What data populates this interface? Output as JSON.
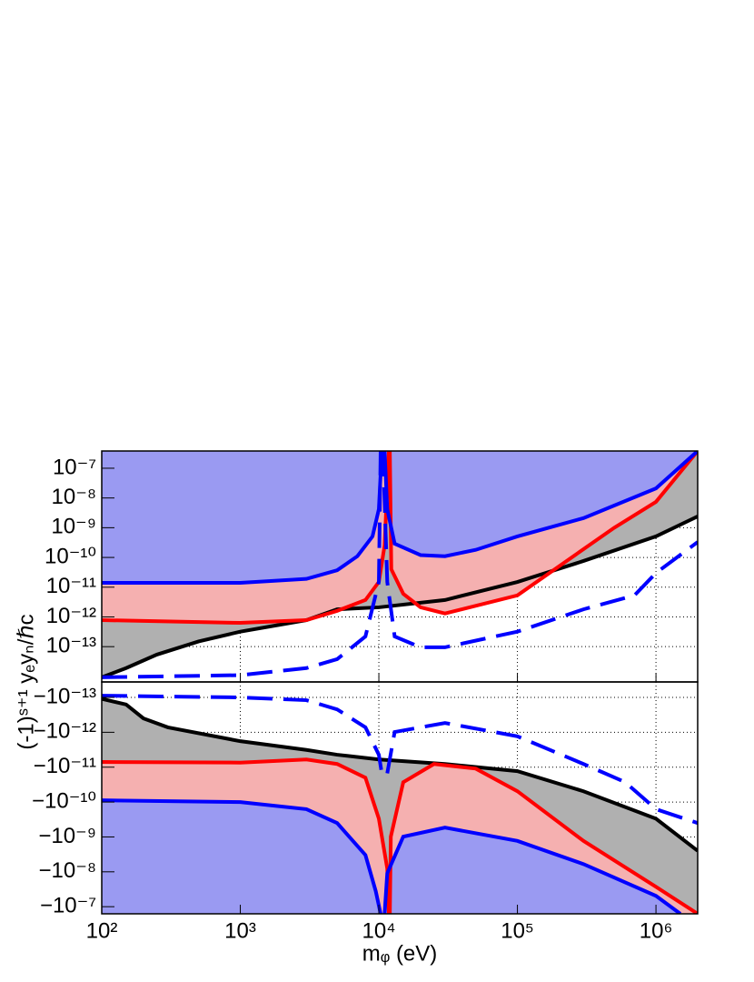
{
  "chart_data": [
    {
      "type": "line",
      "log_x": true,
      "log_y": true,
      "grid": true,
      "fill_to": "top",
      "xlim": [
        100,
        2000000
      ],
      "xticks": [
        100,
        1000,
        10000,
        100000,
        1000000
      ],
      "ylim": [
        6.5e-15,
        3.8e-07
      ],
      "yticks": [
        {
          "value": 1e-13,
          "label": "10⁻¹³"
        },
        {
          "value": 1e-12,
          "label": "10⁻¹²"
        },
        {
          "value": 1e-11,
          "label": "10⁻¹¹"
        },
        {
          "value": 1e-10,
          "label": "10⁻¹⁰"
        },
        {
          "value": 1e-09,
          "label": "10⁻⁹"
        },
        {
          "value": 1e-08,
          "label": "10⁻⁸"
        },
        {
          "value": 1e-07,
          "label": "10⁻⁷"
        }
      ],
      "series": [
        {
          "color": "#000000",
          "fill": "#b0b0b0",
          "x": [
            100,
            150,
            250,
            500,
            1000,
            3000,
            5000,
            10000,
            30000,
            100000,
            300000,
            1000000,
            2000000
          ],
          "values": [
            9.3e-15,
            1.9e-14,
            5.4e-14,
            1.5e-13,
            3.2e-13,
            7.8e-13,
            1.8e-12,
            2.1e-12,
            3.7e-12,
            1.5e-11,
            7.6e-11,
            5.1e-10,
            2.4e-09
          ]
        },
        {
          "color": "#ff0000",
          "fill": "#f5b0b0",
          "x": [
            100,
            1000,
            3000,
            5000,
            8000,
            10000,
            11000,
            11800,
            11900,
            12000,
            12300,
            15000,
            20000,
            30000,
            100000,
            500000,
            1000000,
            2000000
          ],
          "values": [
            7.8e-13,
            6.3e-13,
            7.8e-13,
            1.6e-12,
            3.7e-12,
            1.5e-11,
            2.5e-10,
            3.8e-07,
            null,
            3.8e-07,
            4e-11,
            6e-12,
            2.1e-12,
            1.3e-12,
            5.3e-12,
            1e-09,
            7.4e-09,
            3.8e-07
          ]
        },
        {
          "color": "#0000ff",
          "fill": "#9a9af2",
          "x": [
            100,
            1000,
            3000,
            5000,
            7000,
            9000,
            10000,
            10500,
            10700,
            11000,
            11500,
            13000,
            20000,
            30000,
            50000,
            100000,
            300000,
            1000000,
            2000000
          ],
          "values": [
            1.4e-11,
            1.4e-11,
            1.9e-11,
            3.7e-11,
            1.1e-10,
            5.1e-10,
            4.2e-09,
            3.8e-07,
            null,
            3.8e-07,
            4.2e-09,
            2.9e-10,
            1.2e-10,
            1.1e-10,
            1.8e-10,
            5.1e-10,
            2.1e-09,
            2.1e-08,
            3.8e-07
          ]
        },
        {
          "color": "#0000ff",
          "dash": true,
          "x": [
            100,
            1000,
            3000,
            5000,
            8000,
            10000,
            10300,
            10500,
            10700,
            11500,
            13000,
            20000,
            30000,
            100000,
            300000,
            700000,
            1000000,
            2000000
          ],
          "values": [
            9.3e-15,
            1.1e-14,
            1.9e-14,
            3.8e-14,
            2.2e-13,
            1.5e-11,
            3.8e-07,
            null,
            3.8e-07,
            1.5e-11,
            2.2e-13,
            9.5e-14,
            9.5e-14,
            3.2e-13,
            1.8e-12,
            5.3e-12,
            3e-11,
            3.3e-10
          ]
        }
      ]
    },
    {
      "type": "line",
      "log_x": true,
      "log_y": true,
      "grid": true,
      "fill_to": "bottom",
      "xlabel": "mᵩ (eV)",
      "ylabel": "(-1)ˢ⁺¹ yₑyₙ/ℏc",
      "xlim": [
        100,
        2000000
      ],
      "xticks": [
        {
          "value": 100,
          "label": "10²"
        },
        {
          "value": 1000,
          "label": "10³"
        },
        {
          "value": 10000,
          "label": "10⁴"
        },
        {
          "value": 100000,
          "label": "10⁵"
        },
        {
          "value": 1000000,
          "label": "10⁶"
        }
      ],
      "ylim": [
        -1.6e-07,
        -3.6e-14
      ],
      "yticks": [
        {
          "value": -1e-13,
          "label": "−10⁻¹³"
        },
        {
          "value": -1e-12,
          "label": "−10⁻¹²"
        },
        {
          "value": -1e-11,
          "label": "−10⁻¹¹"
        },
        {
          "value": -1e-10,
          "label": "−10⁻¹⁰"
        },
        {
          "value": -1e-09,
          "label": "−10⁻⁹"
        },
        {
          "value": -1e-08,
          "label": "−10⁻⁸"
        },
        {
          "value": -1e-07,
          "label": "−10⁻⁷"
        }
      ],
      "series": [
        {
          "color": "#000000",
          "fill": "#b0b0b0",
          "x": [
            100,
            150,
            200,
            300,
            1000,
            3000,
            5000,
            10000,
            30000,
            100000,
            300000,
            1000000,
            2000000
          ],
          "values": [
            -1.1e-13,
            -1.6e-13,
            -4e-13,
            -7.2e-13,
            -1.8e-12,
            -3.2e-12,
            -4.4e-12,
            -6e-12,
            -8.1e-12,
            -1.3e-11,
            -4.9e-11,
            -3e-10,
            -2.5e-09
          ]
        },
        {
          "color": "#ff0000",
          "fill": "#f5b0b0",
          "x": [
            100,
            1000,
            3000,
            5000,
            8000,
            10000,
            11500,
            11800,
            11900,
            12000,
            12200,
            15000,
            25000,
            50000,
            100000,
            300000,
            1000000,
            2000000
          ],
          "values": [
            -7.1e-12,
            -7.4e-12,
            -6e-12,
            -8.1e-12,
            -2e-11,
            -3e-10,
            -8.1e-09,
            -1.6e-07,
            null,
            -1.6e-07,
            -9.8e-10,
            -2.7e-11,
            -8.1e-12,
            -1.1e-11,
            -4.9e-11,
            -1.3e-09,
            -2.7e-08,
            -1.6e-07
          ]
        },
        {
          "color": "#0000ff",
          "fill": "#9a9af2",
          "x": [
            100,
            1000,
            3000,
            5000,
            8000,
            9500,
            10300,
            10700,
            11000,
            11500,
            15000,
            30000,
            100000,
            300000,
            1000000,
            1500000
          ],
          "values": [
            -8.9e-11,
            -1e-10,
            -1.6e-10,
            -4e-10,
            -3.3e-09,
            -3.6e-08,
            -1.6e-07,
            null,
            -1.6e-07,
            -1.1e-08,
            -9.8e-10,
            -5.4e-10,
            -1.3e-09,
            -6e-09,
            -4.9e-08,
            -1.6e-07
          ]
        },
        {
          "color": "#0000ff",
          "dash": true,
          "x": [
            100,
            1000,
            3000,
            5000,
            8000,
            10000,
            10500,
            10700,
            11500,
            13000,
            30000,
            100000,
            300000,
            600000,
            1000000,
            2000000
          ],
          "values": [
            -8.9e-14,
            -1e-13,
            -1.2e-13,
            -2.2e-13,
            -7.2e-13,
            -4.4e-12,
            -1.5e-11,
            null,
            -1.5e-11,
            -9.8e-13,
            -5.4e-13,
            -1.3e-12,
            -8.1e-12,
            -2.7e-11,
            -1.6e-10,
            -4e-10
          ]
        }
      ]
    }
  ]
}
